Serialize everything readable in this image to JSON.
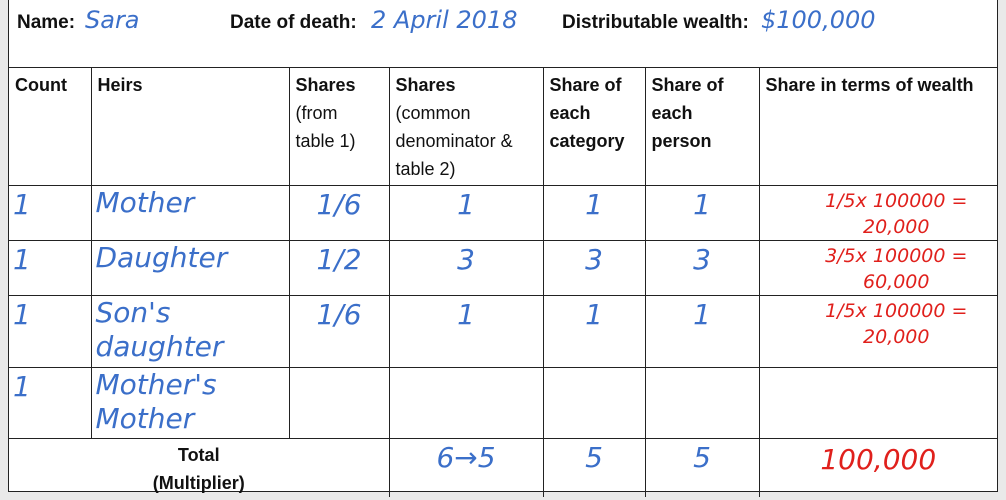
{
  "header": {
    "name_label": "Name:",
    "name_value": "Sara",
    "death_label": "Date of death:",
    "death_value": "2 April 2018",
    "wealth_label": "Distributable wealth:",
    "wealth_value": "$100,000"
  },
  "columns": {
    "count": "Count",
    "heirs": "Heirs",
    "shares1_bold": "Shares",
    "shares1_rest": [
      "(from",
      "table 1)"
    ],
    "shares2_bold": "Shares",
    "shares2_rest": [
      "(common",
      "denominator &",
      "table 2)"
    ],
    "category": [
      "Share of",
      "each",
      "category"
    ],
    "person": [
      "Share of",
      "each",
      "person"
    ],
    "wealth": "Share in terms of wealth"
  },
  "rows": [
    {
      "count": "1",
      "heir": [
        "Mother"
      ],
      "shares1": "1/6",
      "shares2": "1",
      "category": "1",
      "person": "1",
      "wealth": [
        "1/5x 100000 =",
        "20,000"
      ]
    },
    {
      "count": "1",
      "heir": [
        "Daughter"
      ],
      "shares1": "1/2",
      "shares2": "3",
      "category": "3",
      "person": "3",
      "wealth": [
        "3/5x 100000 =",
        "60,000"
      ]
    },
    {
      "count": "1",
      "heir": [
        "Son's",
        "daughter"
      ],
      "shares1": "1/6",
      "shares2": "1",
      "category": "1",
      "person": "1",
      "wealth": [
        "1/5x 100000 =",
        "20,000"
      ]
    },
    {
      "count": "1",
      "heir": [
        "Mother's",
        "Mother"
      ],
      "shares1": "",
      "shares2": "",
      "category": "",
      "person": "",
      "wealth": [
        "",
        ""
      ]
    }
  ],
  "total": {
    "label": [
      "Total",
      "(Multiplier)"
    ],
    "shares2": "6→5",
    "category": "5",
    "person": "5",
    "wealth": "100,000"
  },
  "colors": {
    "handwriting_blue": "#3b6fc9",
    "handwriting_red": "#e0201c"
  }
}
